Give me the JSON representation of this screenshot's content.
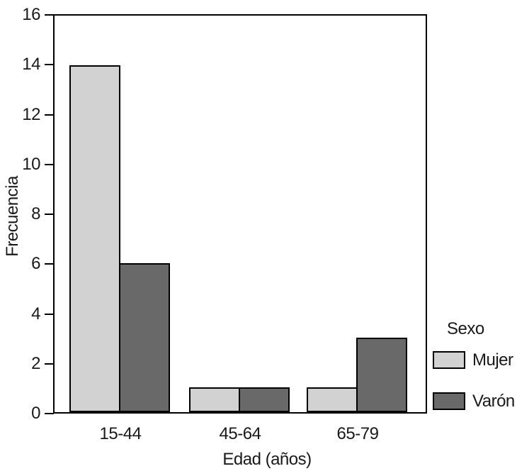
{
  "chart_data": {
    "type": "bar",
    "title": "",
    "categories": [
      "15-44",
      "45-64",
      "65-79"
    ],
    "series": [
      {
        "name": "Mujer",
        "color": "#d2d2d2",
        "values": [
          14,
          1,
          1
        ]
      },
      {
        "name": "Varón",
        "color": "#696969",
        "values": [
          6,
          1,
          3
        ]
      }
    ],
    "xlabel": "Edad (años)",
    "ylabel": "Frecuencia",
    "ylim": [
      0,
      16
    ],
    "yticks": [
      0,
      2,
      4,
      6,
      8,
      10,
      12,
      14,
      16
    ],
    "legend_title": "Sexo",
    "legend_position": "right-bottom",
    "grid": false,
    "bar_border_color": "#000000",
    "background_color": "#ffffff"
  }
}
